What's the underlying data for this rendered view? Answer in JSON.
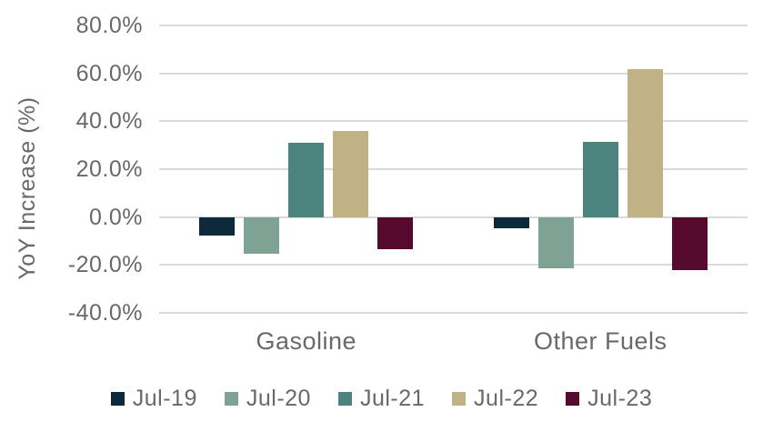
{
  "chart_data": {
    "type": "bar",
    "title": "",
    "xlabel": "",
    "ylabel": "YoY Increase (%)",
    "categories": [
      "Gasoline",
      "Other Fuels"
    ],
    "series": [
      {
        "name": "Jul-19",
        "color": "#0c2a3a",
        "values": [
          -7.6,
          -4.5
        ]
      },
      {
        "name": "Jul-20",
        "color": "#7ea293",
        "values": [
          -15.5,
          -21.5
        ]
      },
      {
        "name": "Jul-21",
        "color": "#4d837e",
        "values": [
          30.9,
          31.5
        ]
      },
      {
        "name": "Jul-22",
        "color": "#c0b284",
        "values": [
          35.9,
          61.7
        ]
      },
      {
        "name": "Jul-23",
        "color": "#560a2e",
        "values": [
          -13.4,
          -22.0
        ]
      }
    ],
    "y_axis": {
      "min": -40,
      "max": 80,
      "step": 20,
      "tick_labels": [
        "80.0%",
        "60.0%",
        "40.0%",
        "20.0%",
        "0.0%",
        "-20.0%",
        "-40.0%"
      ],
      "unit": "percent"
    },
    "legend": {
      "position": "bottom",
      "entries": [
        "Jul-19",
        "Jul-20",
        "Jul-21",
        "Jul-22",
        "Jul-23"
      ]
    },
    "grid": {
      "show": true,
      "color": "#d9d9d9"
    },
    "colors": {
      "text": "#696969",
      "background": "#ffffff"
    }
  }
}
